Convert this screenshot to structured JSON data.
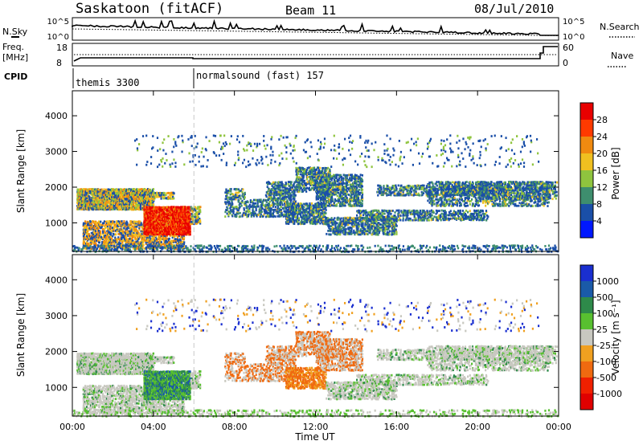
{
  "header": {
    "site": "Saskatoon (fitACF)",
    "beam": "Beam 11",
    "date": "08/Jul/2010"
  },
  "strip_sky": {
    "left_label": "N.Sky",
    "right_label": "N.Search",
    "left_ticks": [
      "10^5",
      "10^0"
    ],
    "right_ticks": [
      "10^5",
      "10^0"
    ]
  },
  "strip_freq": {
    "left_label_1": "Freq.",
    "left_label_2": "[MHz]",
    "left_ticks": [
      "18",
      "8"
    ],
    "right_ticks": [
      "60",
      "0"
    ],
    "right_label": "Nave"
  },
  "cpid": {
    "label": "CPID",
    "modes": [
      {
        "name": "themis 3300",
        "start_hour": 0
      },
      {
        "name": "normalsound (fast) 157",
        "start_hour": 6
      }
    ]
  },
  "chart_data": [
    {
      "type": "heatmap",
      "name": "power",
      "ylabel": "Slant Range [km]",
      "ylim": [
        200,
        4700
      ],
      "xlim_hours": [
        0,
        24
      ],
      "yticks": [
        "1000",
        "2000",
        "3000",
        "4000"
      ],
      "colorbar_label": "Power [dB]",
      "colorbar_ticks": [
        "4",
        "8",
        "12",
        "16",
        "20",
        "24",
        "28"
      ],
      "colorbar_colors": [
        "#0018ff",
        "#1a4fa8",
        "#3e8e6e",
        "#8fc43e",
        "#f0c020",
        "#f08a10",
        "#ff3a00",
        "#e80000"
      ]
    },
    {
      "type": "heatmap",
      "name": "velocity",
      "ylabel": "Slant Range [km]",
      "xlabel": "Time UT",
      "ylim": [
        200,
        4700
      ],
      "xlim_hours": [
        0,
        24
      ],
      "yticks": [
        "1000",
        "2000",
        "3000",
        "4000"
      ],
      "xticks": [
        "00:00",
        "04:00",
        "08:00",
        "12:00",
        "16:00",
        "20:00",
        "00:00"
      ],
      "colorbar_label": "Velocity [m s⁻¹]",
      "colorbar_ticks": [
        "1000",
        "500",
        "100",
        "25",
        "-25",
        "-100",
        "-500",
        "-1000"
      ],
      "colorbar_colors": [
        "#1a2fd0",
        "#1a5aa8",
        "#2e8a4a",
        "#58c030",
        "#c8c8c0",
        "#f0a020",
        "#f06a10",
        "#f02000",
        "#e00000"
      ]
    }
  ]
}
